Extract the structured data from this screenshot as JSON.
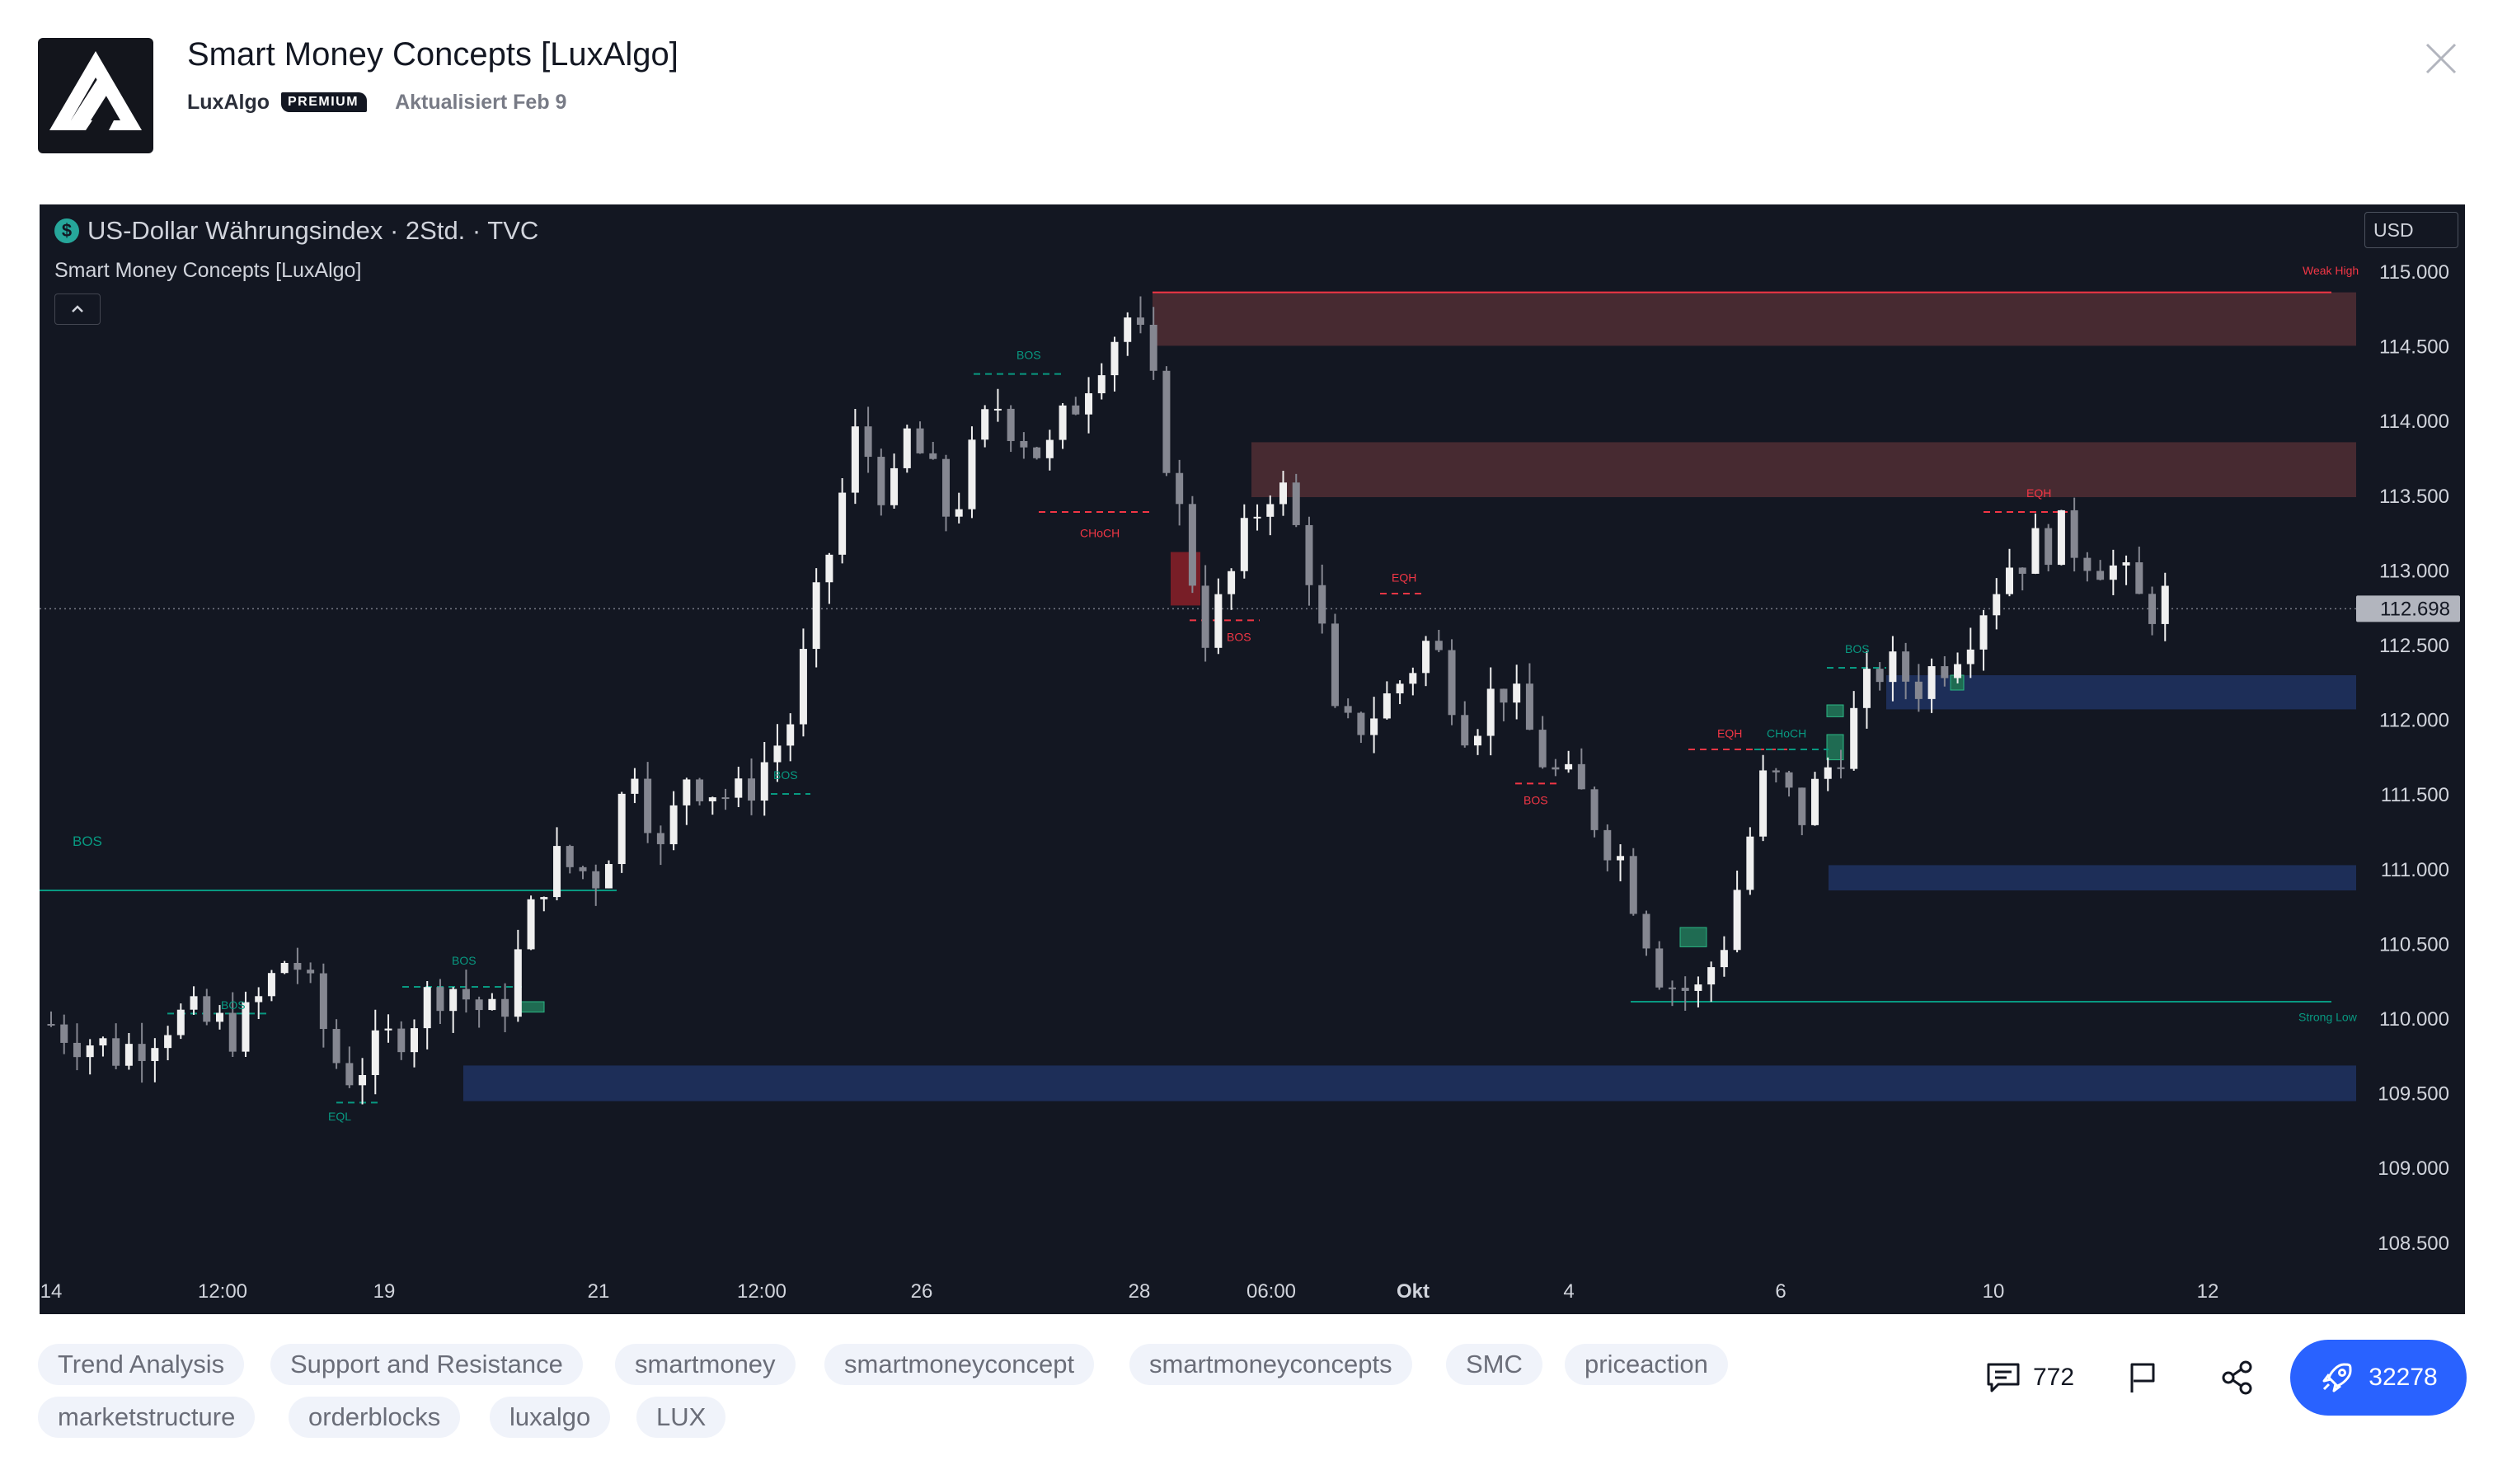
{
  "header": {
    "title": "Smart Money Concepts [LuxAlgo]",
    "author": "LuxAlgo",
    "badge": "PREMIUM",
    "updated": "Aktualisiert Feb 9"
  },
  "chart": {
    "symbol_title": "US-Dollar Währungsindex · 2Std. · TVC",
    "symbol_icon_glyph": "$",
    "indicator_title": "Smart Money Concepts [LuxAlgo]",
    "currency": "USD",
    "last_price": "112.698",
    "price_labels": [
      "115.000",
      "114.500",
      "114.000",
      "113.500",
      "113.000",
      "112.500",
      "112.000",
      "111.500",
      "111.000",
      "110.500",
      "110.000",
      "109.500",
      "109.000",
      "108.500"
    ],
    "time_labels": [
      "14",
      "12:00",
      "19",
      "21",
      "12:00",
      "26",
      "28",
      "06:00",
      "Okt",
      "4",
      "6",
      "10",
      "12"
    ],
    "annotations": {
      "bos": "BOS",
      "choch": "CHoCH",
      "eqh": "EQH",
      "eql": "EQL",
      "weak_high": "Weak High",
      "strong_low": "Strong Low"
    },
    "colors": {
      "background": "#131722",
      "bullish": "#089981",
      "bearish": "#f23645",
      "supply_zone": "#4a2b33",
      "demand_zone": "#1e2f5c",
      "candle_up": "#f0f0f0",
      "candle_down": "#858791"
    }
  },
  "tags": [
    "Trend Analysis",
    "Support and Resistance",
    "smartmoney",
    "smartmoneyconcept",
    "smartmoneyconcepts",
    "SMC",
    "priceaction",
    "marketstructure",
    "orderblocks",
    "luxalgo",
    "LUX"
  ],
  "actions": {
    "comments_count": "772",
    "boost_count": "32278"
  }
}
